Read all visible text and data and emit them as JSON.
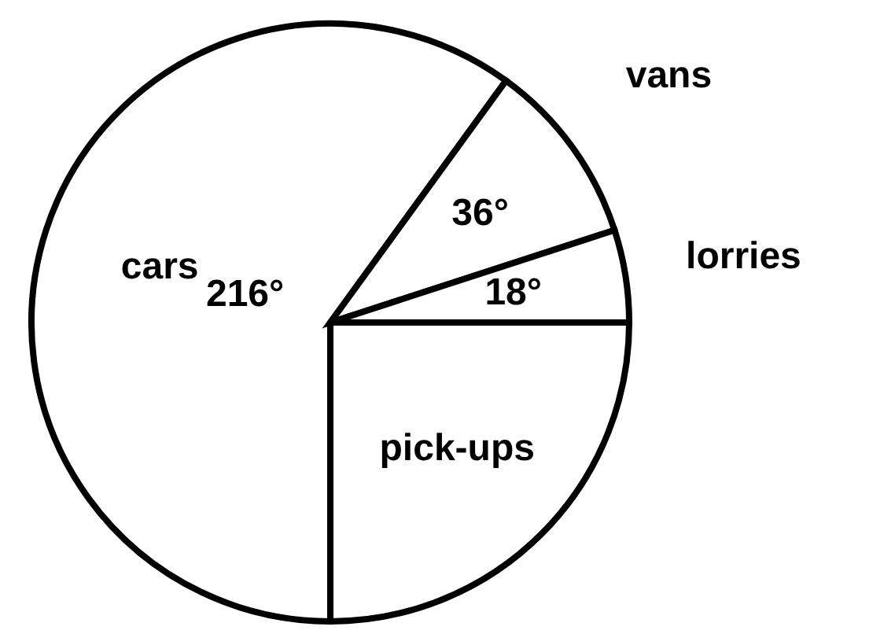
{
  "chart_data": {
    "type": "pie",
    "categories": [
      "pick-ups",
      "cars",
      "vans",
      "lorries"
    ],
    "values": [
      90,
      216,
      36,
      18
    ],
    "colors": [
      "#ffffff",
      "#ffffff",
      "#ffffff",
      "#ffffff"
    ],
    "value_labels": [
      null,
      "216°",
      "36°",
      "18°"
    ]
  }
}
